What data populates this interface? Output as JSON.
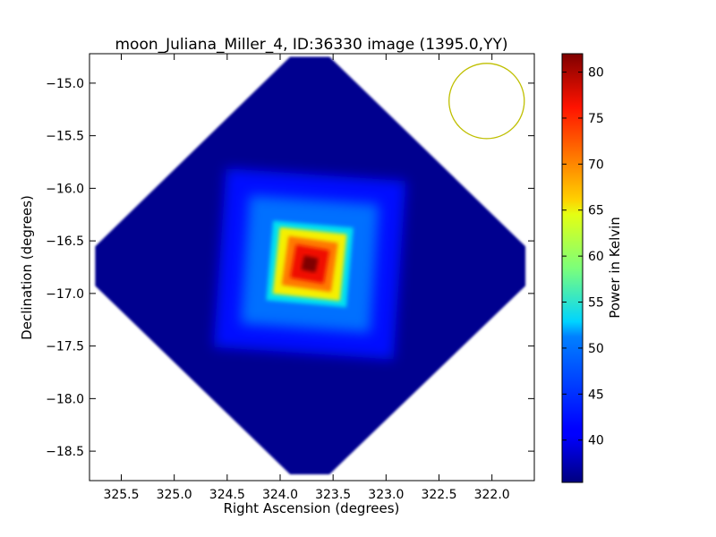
{
  "chart_data": {
    "type": "heatmap",
    "title": "moon_Juliana_Miller_4, ID:36330 image (1395.0,YY)",
    "xlabel": "Right Ascension (degrees)",
    "ylabel": "Declination (degrees)",
    "xlim": [
      325.8,
      321.6
    ],
    "ylim": [
      -18.78,
      -14.72
    ],
    "x_ticks": [
      325.5,
      325.0,
      324.5,
      324.0,
      323.5,
      323.0,
      322.5,
      322.0
    ],
    "x_tick_labels": [
      "325.5",
      "325.0",
      "324.5",
      "324.0",
      "323.5",
      "323.0",
      "322.5",
      "322.0"
    ],
    "y_ticks": [
      -15.0,
      -15.5,
      -16.0,
      -16.5,
      -17.0,
      -17.5,
      -18.0,
      -18.5
    ],
    "y_tick_labels": [
      "−15.0",
      "−15.5",
      "−16.0",
      "−16.5",
      "−17.0",
      "−17.5",
      "−18.0",
      "−18.5"
    ],
    "colormap": "jet",
    "colorbar": {
      "label": "Power in Kelvin",
      "min": 35.4,
      "max": 82.0,
      "ticks": [
        40,
        45,
        50,
        55,
        60,
        65,
        70,
        75,
        80
      ],
      "tick_labels": [
        "40",
        "45",
        "50",
        "55",
        "60",
        "65",
        "70",
        "75",
        "80"
      ]
    },
    "image_region": {
      "shape": "rotated square (diamond) with clipped corners",
      "center_ra": 323.72,
      "center_dec": -16.74,
      "top_dec": -14.75,
      "bottom_dec": -18.72,
      "left_ra": 325.78,
      "right_ra": 321.65,
      "background_value": 35.6
    },
    "peak": {
      "ra": 323.72,
      "dec": -16.72,
      "value": 82.0,
      "half_width_deg": 0.38,
      "halo_width_deg": 0.85,
      "halo_value": 41.5
    },
    "beam_circle": {
      "ra": 322.05,
      "dec": -15.17,
      "radius_deg": 0.37,
      "color": "#bfbf00"
    },
    "grid": false
  }
}
